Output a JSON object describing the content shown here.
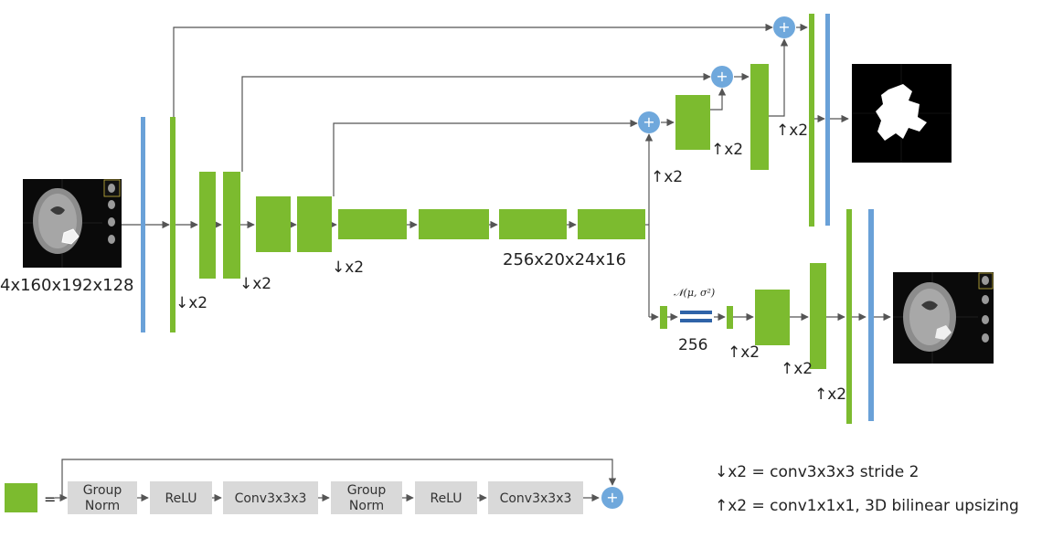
{
  "diagram": {
    "input_shape": "4x160x192x128",
    "bottleneck_shape": "256x20x24x16",
    "latent_dim": "256",
    "latent_dist": "𝒩(μ, σ²)",
    "down_label": "↓x2",
    "up_label": "↑x2",
    "plus_symbol": "+"
  },
  "legend": {
    "equals": "=",
    "steps": [
      {
        "l1": "Group",
        "l2": "Norm"
      },
      {
        "l1": "ReLU",
        "l2": ""
      },
      {
        "l1": "Conv3x3x3",
        "l2": ""
      },
      {
        "l1": "Group",
        "l2": "Norm"
      },
      {
        "l1": "ReLU",
        "l2": ""
      },
      {
        "l1": "Conv3x3x3",
        "l2": ""
      }
    ],
    "down_def": "↓x2 = conv3x3x3 stride 2",
    "up_def": "↑x2 = conv1x1x1, 3D bilinear upsizing"
  },
  "colors": {
    "green_block": "#7cbb2f",
    "blue_bar": "#6aa1d8",
    "plus_node": "#6fa8dc",
    "dist_bar": "#2f63a8",
    "legend_box": "#d9d9d9",
    "line": "#555555"
  }
}
